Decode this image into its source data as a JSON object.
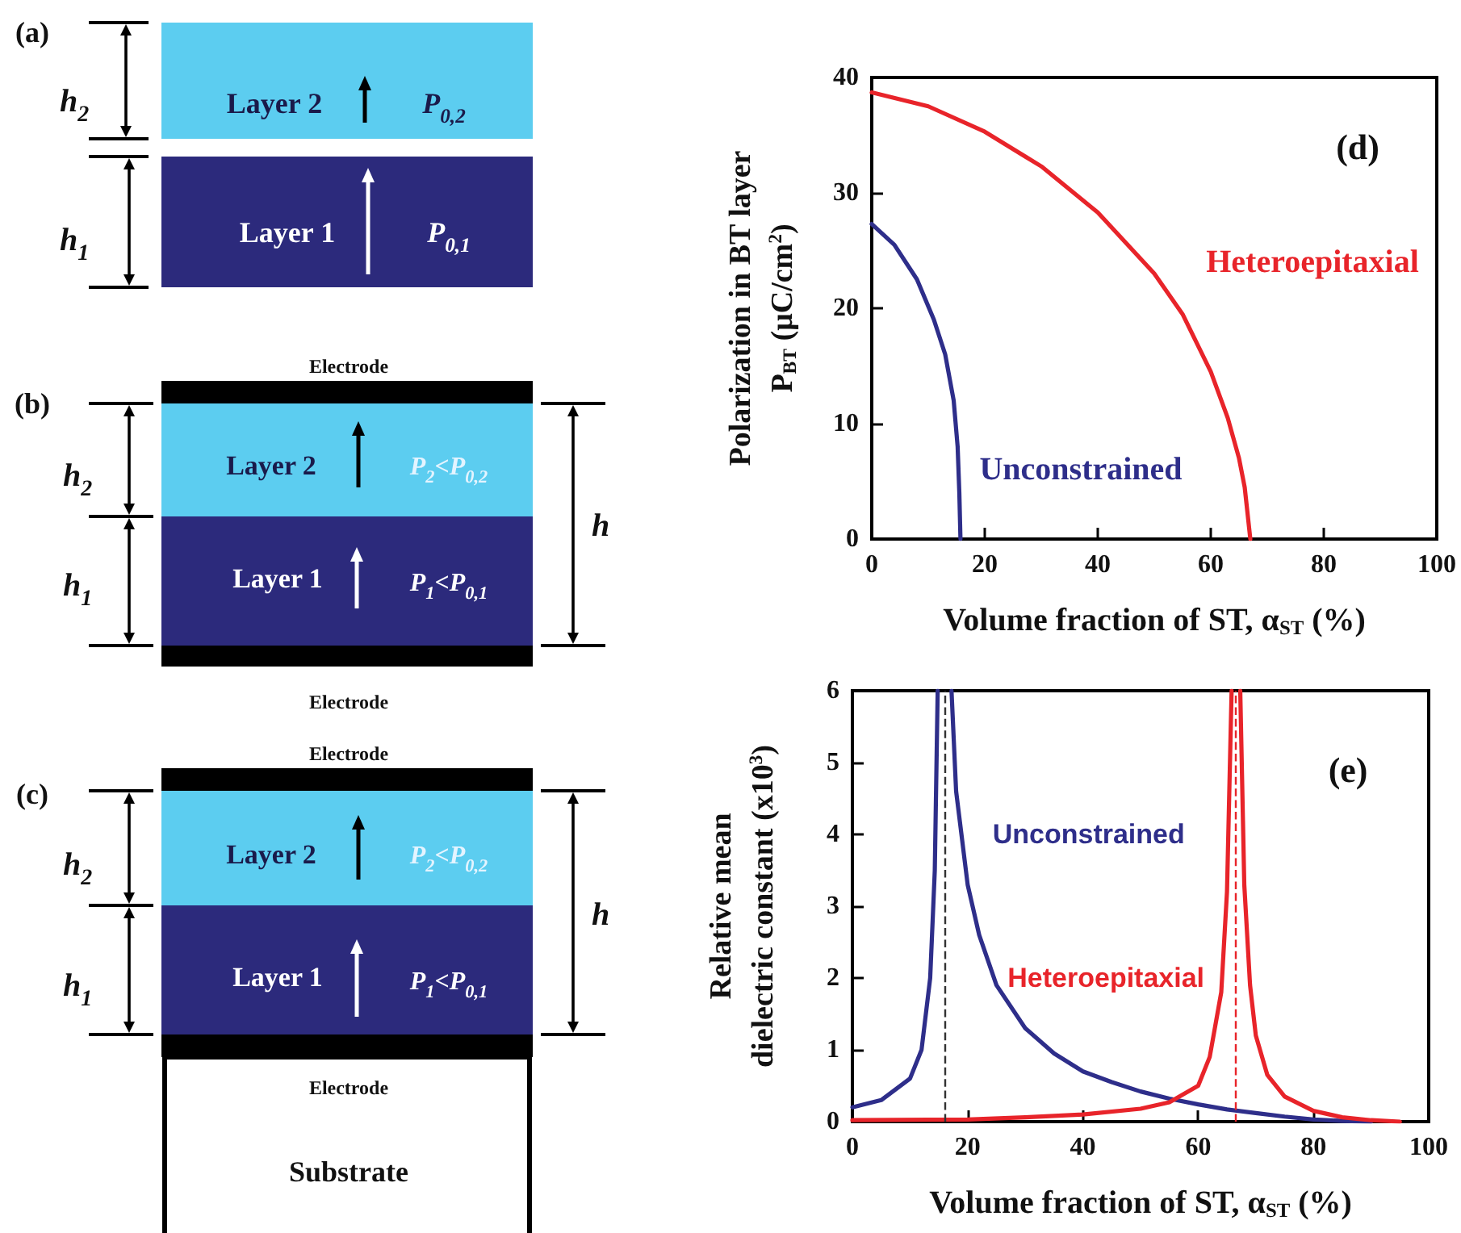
{
  "chart_data": [
    {
      "type": "other",
      "annotations": [
        "(a)",
        "h$_{2}$",
        "Layer 2",
        "P$_{0,2}$",
        "h$_{1}$",
        "Layer 1",
        "P$_{0,1}$",
        "Electrode",
        "(b)",
        "h$_{2}$",
        "Layer 2",
        "P$_{2}$<P$_{0,2}$",
        "h",
        "h$_{1}$",
        "Layer 1",
        "P$_{1}$<P$_{0,1}$",
        "Electrode",
        "Electrode",
        "(c)",
        "h$_{2}$",
        "Layer 2",
        "P$_{2}$<P$_{0,2}$",
        "h",
        "h$_{1}$",
        "Layer 1",
        "P$_{1}$<P$_{0,1}$",
        "Electrode",
        "Substrate"
      ]
    },
    {
      "type": "line",
      "xlabel": "Volume fraction of ST, α$_{ST}$ (%)",
      "ylabel": "Polarization in BT layer\nP$_{BT}$ (μC/cm$^{2}$)",
      "xlim": [
        0,
        100
      ],
      "ylim": [
        0,
        40
      ],
      "xticks": [
        0,
        20,
        40,
        60,
        80,
        100
      ],
      "yticks": [
        0,
        10,
        20,
        30,
        40
      ],
      "marker": "none",
      "line_style": "solid",
      "grid": false,
      "annotations": [
        "(d)"
      ],
      "series": [
        {
          "name": "Unconstrained",
          "color": "#2e2e8a",
          "x": [
            0,
            4,
            8,
            11,
            13,
            14.5,
            15.2,
            15.5,
            15.7
          ],
          "values": [
            27.3,
            25.5,
            22.5,
            19,
            16,
            12,
            8,
            4,
            0
          ]
        },
        {
          "name": "Heteroepitaxial",
          "color": "#e8242a",
          "x": [
            0,
            10,
            20,
            30,
            40,
            50,
            55,
            60,
            63,
            65,
            66,
            67
          ],
          "values": [
            38.7,
            37.5,
            35.3,
            32.3,
            28.3,
            23,
            19.5,
            14.5,
            10.5,
            7,
            4.5,
            0
          ]
        }
      ]
    },
    {
      "type": "line",
      "xlabel": "Volume fraction of ST, α$_{ST}$ (%)",
      "ylabel": "Relative mean\ndielectric constant (x10$^{3}$)",
      "xlim": [
        0,
        100
      ],
      "ylim": [
        0,
        6
      ],
      "xticks": [
        0,
        20,
        40,
        60,
        80,
        100
      ],
      "yticks": [
        0,
        1,
        2,
        3,
        4,
        5,
        6
      ],
      "marker": "none",
      "line_style": "solid",
      "grid": false,
      "annotations": [
        "(e)"
      ],
      "ref_lines": [
        {
          "axis": "x",
          "value": 16,
          "color": "#333333",
          "line_style": "dashed"
        },
        {
          "axis": "x",
          "value": 66.5,
          "color": "#e8242a",
          "line_style": "dashed"
        }
      ],
      "series": [
        {
          "name": "Unconstrained",
          "color": "#2e2e8a",
          "x": [
            0,
            5,
            10,
            12,
            13.5,
            14.3,
            14.8,
            16,
            17.2,
            18,
            20,
            22,
            25,
            30,
            35,
            40,
            45,
            50,
            55,
            60,
            65,
            70,
            75,
            80,
            85,
            90
          ],
          "values": [
            0.2,
            0.3,
            0.6,
            1.0,
            2,
            3.5,
            6,
            null,
            6,
            4.6,
            3.3,
            2.6,
            1.9,
            1.3,
            0.95,
            0.7,
            0.55,
            0.42,
            0.32,
            0.24,
            0.17,
            0.12,
            0.07,
            0.03,
            0.01,
            0
          ]
        },
        {
          "name": "Heteroepitaxial",
          "color": "#e8242a",
          "x": [
            0,
            20,
            30,
            40,
            50,
            55,
            60,
            62,
            64,
            65,
            65.8,
            66.5,
            67.3,
            68,
            69,
            70,
            72,
            75,
            80,
            85,
            90,
            95
          ],
          "values": [
            0.02,
            0.03,
            0.06,
            0.1,
            0.18,
            0.27,
            0.5,
            0.9,
            1.8,
            3.2,
            6,
            null,
            6,
            3.3,
            1.9,
            1.2,
            0.65,
            0.35,
            0.15,
            0.06,
            0.02,
            0
          ]
        }
      ]
    }
  ]
}
